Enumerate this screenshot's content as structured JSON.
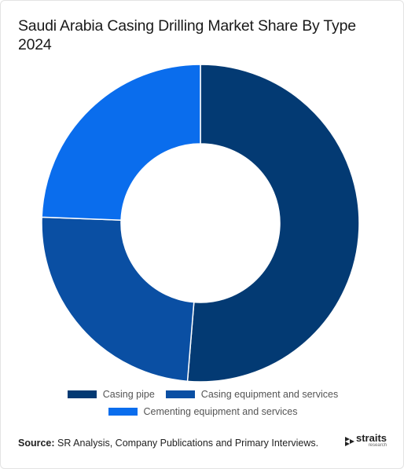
{
  "chart_data": {
    "type": "donut",
    "title": "Saudi Arabia Casing Drilling Market Share By Type 2024",
    "categories": [
      "Casing pipe",
      "Casing equipment and services",
      "Cementing equipment and services"
    ],
    "values": [
      51.3,
      24.3,
      24.4
    ],
    "colors": [
      "#033a73",
      "#0a4fa3",
      "#0a6ded"
    ],
    "source_label": "Source:",
    "source": "SR Analysis, Company Publications and Primary Interviews.",
    "logo": {
      "name": "straits",
      "tagline": "research"
    }
  }
}
